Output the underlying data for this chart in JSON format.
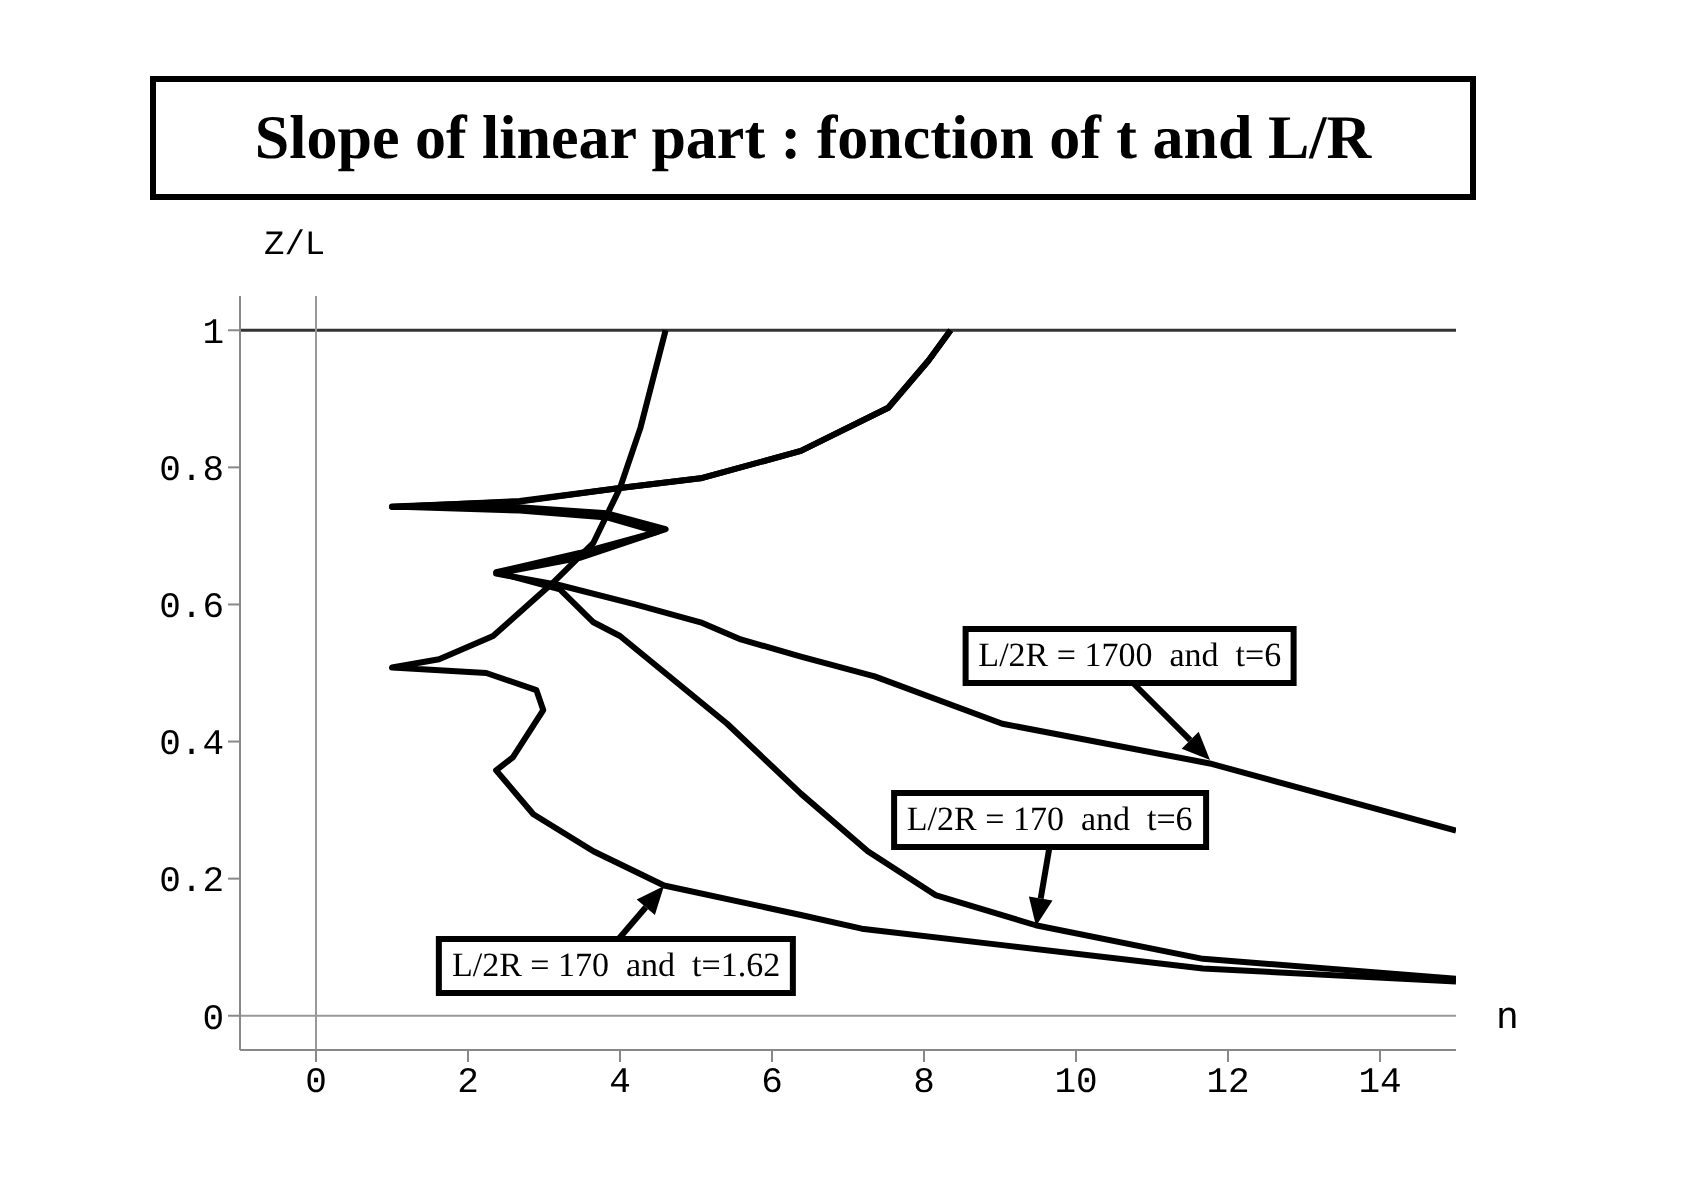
{
  "chart_data": {
    "type": "line",
    "title": "Slope of linear part : fonction of t and L/R",
    "xlabel": "n",
    "ylabel": "Z/L",
    "xlim": [
      -1,
      15
    ],
    "ylim": [
      -0.05,
      1.05
    ],
    "xticks": [
      0,
      2,
      4,
      6,
      8,
      10,
      12,
      14
    ],
    "yticks": [
      0,
      0.2,
      0.4,
      0.6,
      0.8,
      1
    ],
    "marker": "none",
    "line_style": "solid",
    "ref_lines": [
      {
        "axis": "y",
        "value": 1,
        "color": "#333333"
      },
      {
        "axis": "y",
        "value": 0,
        "color": "#999999"
      },
      {
        "axis": "x",
        "value": 0,
        "color": "#999999"
      }
    ],
    "series": [
      {
        "color": "#000000",
        "x": [
          15,
          11.76,
          9.03,
          7.35,
          6.38,
          5.59,
          5.06,
          4.2,
          3.21,
          2.37,
          3.47,
          4.6,
          3.83,
          2.68,
          1.0,
          2.68,
          4.0,
          5.06,
          6.38,
          7.53,
          8.06,
          8.35
        ],
        "values": [
          0.27,
          0.368,
          0.426,
          0.495,
          0.524,
          0.549,
          0.574,
          0.6,
          0.628,
          0.645,
          0.668,
          0.71,
          0.733,
          0.742,
          0.742,
          0.751,
          0.77,
          0.784,
          0.824,
          0.887,
          0.956,
          1.0
        ]
      },
      {
        "color": "#000000",
        "x": [
          15,
          11.67,
          9.47,
          8.15,
          7.26,
          6.38,
          5.41,
          4.0,
          3.65,
          3.21,
          2.37,
          3.47,
          4.49,
          3.83,
          2.68,
          1.0,
          2.68,
          4.0,
          5.06,
          6.38,
          7.53,
          8.06,
          8.35
        ],
        "values": [
          0.054,
          0.083,
          0.132,
          0.176,
          0.24,
          0.324,
          0.426,
          0.554,
          0.574,
          0.622,
          0.647,
          0.675,
          0.706,
          0.727,
          0.737,
          0.743,
          0.75,
          0.77,
          0.784,
          0.824,
          0.887,
          0.956,
          1.0
        ]
      },
      {
        "color": "#000000",
        "x": [
          15,
          11.67,
          9.03,
          7.18,
          6.38,
          4.58,
          3.65,
          2.86,
          2.37,
          2.59,
          2.99,
          2.9,
          2.24,
          1.0,
          1.62,
          2.33,
          3.12,
          3.65,
          4.0,
          4.27,
          4.6
        ],
        "values": [
          0.05,
          0.069,
          0.103,
          0.127,
          0.147,
          0.19,
          0.24,
          0.294,
          0.358,
          0.377,
          0.446,
          0.475,
          0.5,
          0.508,
          0.52,
          0.554,
          0.632,
          0.69,
          0.77,
          0.858,
          1.0
        ]
      }
    ],
    "annotations": [
      {
        "text": "L/2R = 1700  and  t=6",
        "x": 11.76,
        "y": 0.372
      },
      {
        "text": "L/2R = 170  and  t=6",
        "x": 9.47,
        "y": 0.132
      },
      {
        "text": "L/2R = 170  and  t=1.62",
        "x": 4.58,
        "y": 0.19
      }
    ]
  }
}
